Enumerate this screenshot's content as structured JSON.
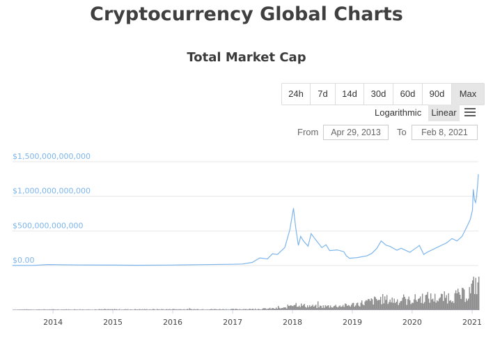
{
  "page": {
    "title": "Cryptocurrency Global Charts"
  },
  "controls": {
    "range_buttons": [
      "24h",
      "7d",
      "14d",
      "30d",
      "60d",
      "90d",
      "Max"
    ],
    "active_range": "Max",
    "scale_options": [
      "Logarithmic",
      "Linear"
    ],
    "active_scale": "Linear",
    "from_label": "From",
    "from_value": "Apr 29, 2013",
    "to_label": "To",
    "to_value": "Feb 8, 2021"
  },
  "colors": {
    "line": "#7cb5ec",
    "volume": "#8d8d8d",
    "axis_labels": "#7cb5ec"
  },
  "chart_data": {
    "type": "line",
    "title": "Total Market Cap",
    "xlabel": "",
    "ylabel": "",
    "y_tick_labels": [
      "$0.00",
      "$500,000,000,000",
      "$1,000,000,000,000",
      "$1,500,000,000,000"
    ],
    "y_ticks": [
      0,
      500000000000,
      1000000000000,
      1500000000000
    ],
    "ylim": [
      0,
      1500000000000
    ],
    "x_tick_labels": [
      "2014",
      "2015",
      "2016",
      "2017",
      "2018",
      "2019",
      "2020",
      "2021"
    ],
    "xlim": [
      "2013-04-29",
      "2021-02-08"
    ],
    "grid": true,
    "legend": "none",
    "series": [
      {
        "x": [
          "2013-04-29",
          "2013-09-01",
          "2013-12-01",
          "2014-06-01",
          "2015-01-01",
          "2015-06-01",
          "2016-01-01",
          "2016-06-01",
          "2017-01-01",
          "2017-03-01",
          "2017-05-01",
          "2017-06-15",
          "2017-08-01",
          "2017-09-01",
          "2017-10-01",
          "2017-11-15",
          "2017-12-15",
          "2018-01-07",
          "2018-01-20",
          "2018-02-06",
          "2018-02-20",
          "2018-03-10",
          "2018-04-06",
          "2018-04-25",
          "2018-05-20",
          "2018-06-29",
          "2018-07-25",
          "2018-08-15",
          "2018-09-30",
          "2018-11-10",
          "2018-11-25",
          "2018-12-15",
          "2019-01-31",
          "2019-03-31",
          "2019-04-30",
          "2019-05-31",
          "2019-06-26",
          "2019-07-25",
          "2019-08-20",
          "2019-09-30",
          "2019-10-26",
          "2019-12-18",
          "2020-01-31",
          "2020-02-14",
          "2020-03-12",
          "2020-03-31",
          "2020-05-31",
          "2020-07-31",
          "2020-08-31",
          "2020-09-30",
          "2020-10-31",
          "2020-11-30",
          "2020-12-20",
          "2021-01-03",
          "2021-01-08",
          "2021-01-15",
          "2021-01-22",
          "2021-01-28",
          "2021-02-03",
          "2021-02-08"
        ],
        "values": [
          1500000000.0,
          2000000000.0,
          14000000000.0,
          8000000000.0,
          6000000000.0,
          4000000000.0,
          7000000000.0,
          12000000000.0,
          18000000000.0,
          22000000000.0,
          45000000000.0,
          110000000000.0,
          95000000000.0,
          170000000000.0,
          160000000000.0,
          260000000000.0,
          510000000000.0,
          830000000000.0,
          560000000000.0,
          290000000000.0,
          420000000000.0,
          350000000000.0,
          280000000000.0,
          460000000000.0,
          380000000000.0,
          260000000000.0,
          300000000000.0,
          215000000000.0,
          225000000000.0,
          200000000000.0,
          140000000000.0,
          105000000000.0,
          115000000000.0,
          140000000000.0,
          175000000000.0,
          250000000000.0,
          355000000000.0,
          295000000000.0,
          275000000000.0,
          220000000000.0,
          250000000000.0,
          190000000000.0,
          265000000000.0,
          290000000000.0,
          160000000000.0,
          190000000000.0,
          260000000000.0,
          330000000000.0,
          390000000000.0,
          355000000000.0,
          420000000000.0,
          560000000000.0,
          660000000000.0,
          800000000000.0,
          1100000000000.0,
          950000000000.0,
          910000000000.0,
          1000000000000.0,
          1150000000000.0,
          1320000000000.0
        ]
      }
    ],
    "volume": {
      "x": [
        "2013-04-29",
        "2016-12-31",
        "2017-06-01",
        "2017-11-15",
        "2017-12-20",
        "2018-01-10",
        "2018-03-01",
        "2018-06-01",
        "2018-12-01",
        "2019-04-01",
        "2019-06-26",
        "2019-09-01",
        "2019-12-01",
        "2020-03-12",
        "2020-06-01",
        "2020-09-01",
        "2020-11-30",
        "2021-01-03",
        "2021-01-11",
        "2021-01-28",
        "2021-02-08"
      ],
      "values": [
        0.05,
        0.08,
        0.1,
        0.18,
        0.5,
        0.55,
        0.4,
        0.3,
        0.4,
        0.7,
        0.95,
        0.85,
        0.8,
        1.1,
        1.0,
        1.2,
        1.35,
        2.0,
        2.4,
        2.1,
        2.6
      ]
    }
  }
}
